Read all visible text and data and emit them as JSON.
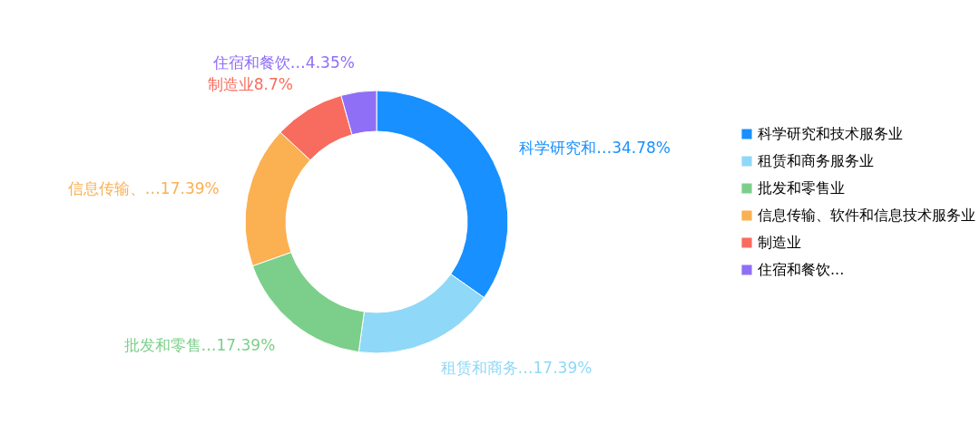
{
  "chart_data": {
    "type": "donut",
    "categories": [
      "科学研究和技术服务业",
      "租赁和商务服务业",
      "批发和零售业",
      "信息传输、软件和信息技术服务业",
      "制造业",
      "住宿和餐饮..."
    ],
    "values": [
      34.78,
      17.39,
      17.39,
      17.39,
      8.7,
      4.35
    ],
    "colors": [
      "#1890ff",
      "#8fd8f8",
      "#7ccf8a",
      "#fbb052",
      "#f76c5e",
      "#8f6ff5"
    ],
    "value_labels": [
      "科学研究和…34.78%",
      "租赁和商务…17.39%",
      "批发和零售…17.39%",
      "信息传输、…17.39%",
      "制造业8.7%",
      "住宿和餐饮…4.35%"
    ],
    "legend": "right"
  }
}
